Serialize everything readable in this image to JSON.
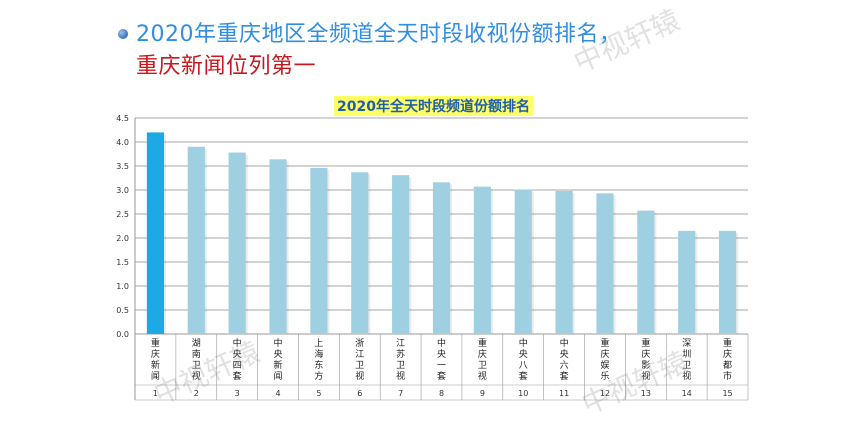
{
  "header": {
    "line1": "2020年重庆地区全频道全天时段收视份额排名，",
    "line2": "重庆新闻位列第一"
  },
  "watermark": "中视轩辕",
  "colors": {
    "headline1": "#2f8ee2",
    "headline2": "#c8181d",
    "bar": "#9fd0e2",
    "bar_highlight": "#1ca9e6"
  },
  "chart_data": {
    "type": "bar",
    "title": "2020年全天时段频道份额排名",
    "categories": [
      "重庆新闻",
      "湖南卫视",
      "中央四套",
      "中央新闻",
      "上海东方",
      "浙江卫视",
      "江苏卫视",
      "中央一套",
      "重庆卫视",
      "中央八套",
      "中央六套",
      "重庆娱乐",
      "重庆影视",
      "深圳卫视",
      "重庆都市"
    ],
    "ranks": [
      "1",
      "2",
      "3",
      "4",
      "5",
      "6",
      "7",
      "8",
      "9",
      "10",
      "11",
      "12",
      "13",
      "14",
      "15"
    ],
    "values": [
      4.2,
      3.9,
      3.78,
      3.64,
      3.46,
      3.37,
      3.31,
      3.16,
      3.07,
      3.01,
      2.98,
      2.93,
      2.57,
      2.15,
      2.15
    ],
    "highlight_index": 0,
    "ylim": [
      0,
      4.5
    ],
    "yticks": [
      "0.0",
      "0.5",
      "1.0",
      "1.5",
      "2.0",
      "2.5",
      "3.0",
      "3.5",
      "4.0",
      "4.5"
    ],
    "grid": true,
    "legend": "none"
  }
}
